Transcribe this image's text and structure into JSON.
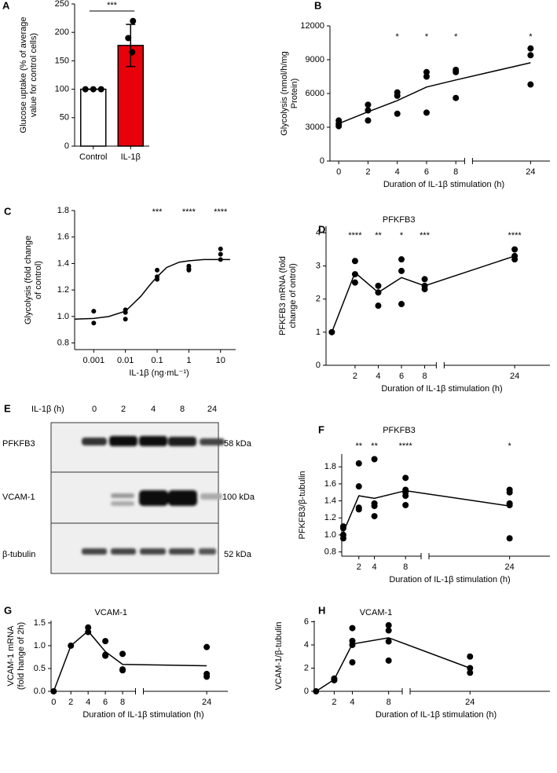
{
  "chart_data": [
    {
      "type": "bar",
      "panel": "A",
      "ylabel": [
        "Glucose uptake (% of average",
        "value for control cells)"
      ],
      "categories": [
        "Control",
        "IL-1β"
      ],
      "values": [
        100,
        177
      ],
      "errors": [
        0,
        37
      ],
      "colors": [
        "#ffffff",
        "#e8000b"
      ],
      "points": [
        [
          100,
          100,
          100
        ],
        [
          220,
          190,
          165
        ]
      ],
      "significance": "***",
      "ylim": [
        0,
        250
      ],
      "yticks": [
        0,
        50,
        100,
        150,
        200,
        250
      ]
    },
    {
      "type": "scatter",
      "panel": "B",
      "ylabel": [
        "Glycolysis (nmol/h/mg",
        "Protein)"
      ],
      "xlabel": "Duration of IL-1β stimulation (h)",
      "xlim": [
        -0.6,
        25
      ],
      "xbreak": [
        8.6,
        21
      ],
      "xticks": [
        0,
        2,
        4,
        6,
        8,
        24
      ],
      "ylim": [
        0,
        12000
      ],
      "yticks": [
        0,
        3000,
        6000,
        9000,
        12000
      ],
      "points": {
        "x": [
          0,
          0,
          0,
          2,
          2,
          2,
          4,
          4,
          4,
          6,
          6,
          6,
          8,
          8,
          8,
          24,
          24,
          24
        ],
        "values": [
          3600,
          3300,
          3100,
          5000,
          4500,
          3600,
          6100,
          5800,
          4200,
          7900,
          7500,
          4300,
          8100,
          7900,
          5600,
          10000,
          9400,
          6800
        ]
      },
      "line": {
        "x": [
          0,
          2,
          4,
          6,
          8,
          24
        ],
        "values": [
          3330,
          4370,
          5370,
          6570,
          7200,
          8730
        ]
      },
      "significance": {
        "x": [
          4,
          6,
          8,
          24
        ],
        "labels": [
          "*",
          "*",
          "*",
          "*"
        ]
      }
    },
    {
      "type": "scatter",
      "panel": "C",
      "ylabel": [
        "Glycolysis (fold change",
        "of control)"
      ],
      "xlabel": "IL-1β (ng·mL⁻¹)",
      "xlog": true,
      "xlim": [
        0.00025,
        30
      ],
      "xticks": [
        0.001,
        0.01,
        0.1,
        1,
        10
      ],
      "ylim": [
        0.75,
        1.8
      ],
      "yticks": [
        0.8,
        {
          "value": 1,
          "label": "1.0"
        },
        1.2,
        1.4,
        1.6,
        1.8
      ],
      "points": {
        "x": [
          0.001,
          0.001,
          0.01,
          0.01,
          0.01,
          0.1,
          0.1,
          0.1,
          1,
          1,
          1,
          10,
          10,
          10
        ],
        "values": [
          1.04,
          0.95,
          1.05,
          1.03,
          0.98,
          1.35,
          1.3,
          1.28,
          1.38,
          1.36,
          1.35,
          1.51,
          1.47,
          1.43
        ]
      },
      "fit": {
        "x": [
          0.00025,
          0.001,
          0.003,
          0.01,
          0.03,
          0.06,
          0.1,
          0.2,
          0.5,
          1,
          3,
          10,
          20
        ],
        "values": [
          0.98,
          0.985,
          1.0,
          1.04,
          1.15,
          1.24,
          1.3,
          1.37,
          1.41,
          1.42,
          1.43,
          1.43,
          1.43
        ]
      },
      "significance": {
        "x": [
          0.1,
          1,
          10
        ],
        "labels": [
          "***",
          "****",
          "****"
        ]
      }
    },
    {
      "type": "scatter",
      "panel": "D",
      "title": "PFKFB3",
      "ylabel": [
        "PFKFB3 mRNA (fold",
        "change of ontrol)"
      ],
      "xlabel": "Duration of IL-1β stimulation (h)",
      "xlim": [
        -0.5,
        25
      ],
      "xbreak": [
        9,
        22
      ],
      "xticks": [
        2,
        4,
        6,
        8,
        24
      ],
      "ylim": [
        0,
        4.2
      ],
      "yticks": [
        0,
        1,
        2,
        3,
        4
      ],
      "points": {
        "x": [
          0,
          2,
          2,
          2,
          4,
          4,
          4,
          6,
          6,
          6,
          8,
          8,
          8,
          24,
          24,
          24
        ],
        "values": [
          1,
          3.15,
          2.75,
          2.5,
          2.4,
          2.2,
          1.8,
          3.2,
          2.85,
          1.85,
          2.6,
          2.4,
          2.3,
          3.5,
          3.3,
          3.2
        ]
      },
      "line": {
        "x": [
          0,
          2,
          4,
          6,
          8,
          24
        ],
        "values": [
          1,
          2.8,
          2.2,
          2.65,
          2.4,
          3.3
        ]
      },
      "significance": {
        "x": [
          2,
          4,
          6,
          8,
          24
        ],
        "labels": [
          "****",
          "**",
          "*",
          "***",
          "****"
        ]
      }
    },
    {
      "type": "scatter",
      "panel": "F",
      "title": "PFKFB3",
      "ylabel": [
        "PFKFB3/β-tubulin"
      ],
      "xlabel": "Duration of IL-1β stimulation (h)",
      "xlim": [
        -0.2,
        25
      ],
      "xbreak": [
        10,
        22
      ],
      "xticks": [
        2,
        4,
        8,
        24
      ],
      "ylim": [
        0.75,
        1.95
      ],
      "yticks": [
        0.8,
        {
          "value": 1,
          "label": "1.0"
        },
        1.2,
        1.4,
        1.6,
        1.8
      ],
      "points": {
        "x": [
          0,
          0,
          0,
          0,
          2,
          2,
          2,
          2,
          4,
          4,
          4,
          4,
          8,
          8,
          8,
          8,
          8,
          24,
          24,
          24,
          24,
          24
        ],
        "values": [
          1.1,
          1.08,
          1.0,
          0.96,
          1.84,
          1.57,
          1.32,
          1.3,
          1.89,
          1.37,
          1.34,
          1.22,
          1.67,
          1.53,
          1.5,
          1.46,
          1.35,
          1.53,
          1.5,
          1.37,
          1.35,
          0.96
        ]
      },
      "line": {
        "x": [
          0,
          2,
          4,
          8,
          24
        ],
        "values": [
          1.03,
          1.46,
          1.43,
          1.52,
          1.34
        ]
      },
      "significance": {
        "x": [
          2,
          4,
          8,
          24
        ],
        "labels": [
          "**",
          "**",
          "****",
          "*"
        ]
      }
    },
    {
      "type": "scatter",
      "panel": "G",
      "title": "VCAM-1",
      "ylabel": [
        "VCAM-1 mRNA",
        "(fold hange  of 2h)"
      ],
      "xlabel": "Duration of IL-1β stimulation (h)",
      "xlim": [
        -0.3,
        25
      ],
      "xbreak": [
        9.5,
        21
      ],
      "xticks": [
        0,
        2,
        4,
        6,
        8,
        24
      ],
      "ylim": [
        0,
        1.55
      ],
      "yticks": [
        {
          "value": 0,
          "label": "0.0"
        },
        0.5,
        {
          "value": 1,
          "label": "1.0"
        },
        1.5
      ],
      "points": {
        "x": [
          0,
          2,
          4,
          4,
          6,
          6,
          6,
          8,
          8,
          8,
          24,
          24,
          24
        ],
        "values": [
          0,
          1.0,
          1.4,
          1.3,
          1.1,
          0.8,
          0.78,
          0.82,
          0.48,
          0.46,
          0.97,
          0.38,
          0.32
        ]
      },
      "line": {
        "x": [
          0,
          2,
          4,
          6,
          8,
          24
        ],
        "values": [
          0,
          1.0,
          1.32,
          0.87,
          0.59,
          0.56
        ]
      }
    },
    {
      "type": "scatter",
      "panel": "H",
      "title": "VCAM-1",
      "ylabel": [
        "VCAM-1/β-tubulin"
      ],
      "xlabel": "Duration of IL-1β stimulation (h)",
      "xlim": [
        -0.2,
        28
      ],
      "xbreak": [
        9.5,
        21
      ],
      "xticks": [
        2,
        4,
        8,
        24
      ],
      "ylim": [
        0,
        6.1
      ],
      "yticks": [
        0,
        2,
        4,
        6
      ],
      "points": {
        "x": [
          0,
          2,
          2,
          2,
          4,
          4,
          4,
          4,
          8,
          8,
          8,
          8,
          24,
          24,
          24
        ],
        "values": [
          0,
          1.1,
          1.0,
          0.95,
          5.45,
          4.35,
          4.0,
          2.5,
          5.7,
          5.25,
          4.3,
          2.65,
          3.0,
          2.0,
          1.6
        ]
      },
      "line": {
        "x": [
          0,
          2,
          4,
          8,
          24
        ],
        "values": [
          0,
          1.02,
          4.08,
          4.62,
          2.0
        ]
      }
    }
  ],
  "blot": {
    "panel": "E",
    "header": "IL-1β (h)",
    "lanes": [
      "0",
      "2",
      "4",
      "8",
      "24"
    ],
    "rows": [
      {
        "name": "PFKFB3",
        "size": "58 kDa"
      },
      {
        "name": "VCAM-1",
        "size": "100 kDa"
      },
      {
        "name": "β-tubulin",
        "size": "52 kDa"
      }
    ]
  }
}
